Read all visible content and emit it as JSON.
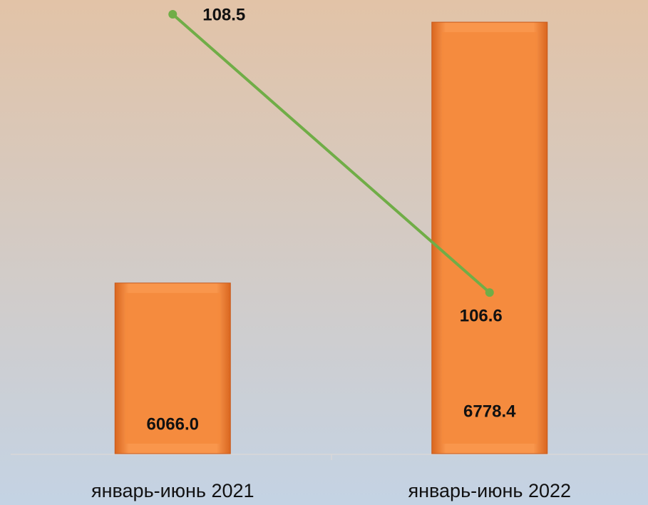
{
  "chart_data": {
    "type": "combo",
    "categories": [
      "январь-июнь 2021",
      "январь-июнь 2022"
    ],
    "series": [
      {
        "type": "bar",
        "color": "#f58a3c",
        "values": [
          6066,
          6778.4
        ],
        "value_labels": [
          "6066.0",
          "6778.4"
        ]
      },
      {
        "type": "line",
        "color": "#70ad47",
        "axis": "y2",
        "values": [
          108.5,
          106.6
        ]
      }
    ],
    "ylim": [
      5600,
      6800
    ],
    "y2lim": [
      105.5,
      108.5
    ]
  }
}
